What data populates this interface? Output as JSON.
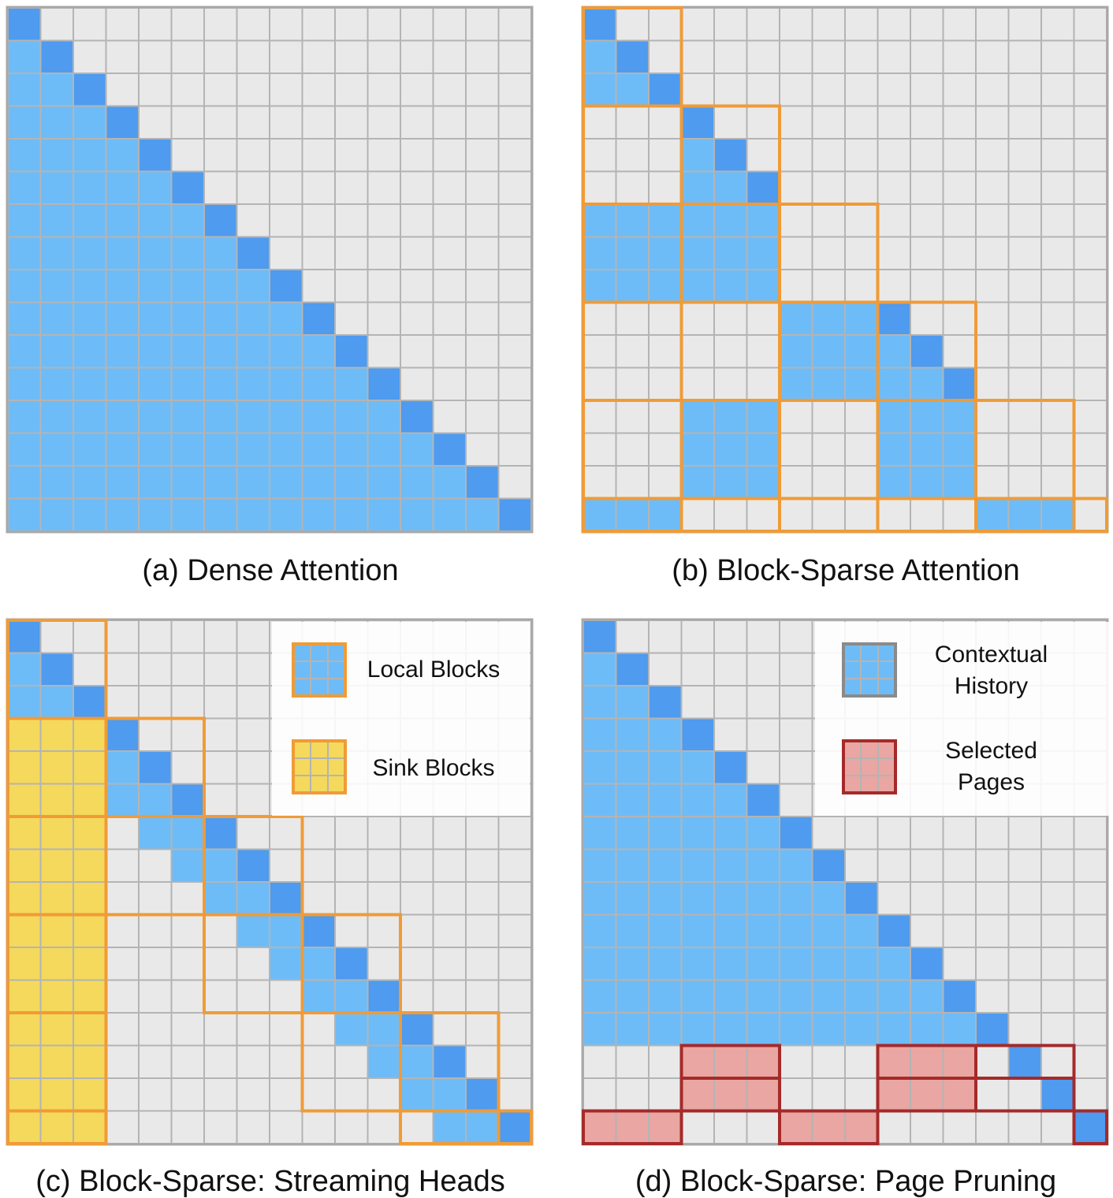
{
  "colors": {
    "empty": "#e9e9e9",
    "grid": "#b4b4b4",
    "border": "#a8a8a8",
    "attended": "#6ebcf7",
    "diagonal": "#4e9bf0",
    "sink": "#f4d95c",
    "selected": "#e9a6a2",
    "orange": "#f09b37",
    "darkred": "#a52a2a"
  },
  "grid_size": 16,
  "panels": [
    {
      "id": "a",
      "caption": "(a) Dense Attention",
      "pattern": "dense"
    },
    {
      "id": "b",
      "caption": "(b) Block-Sparse Attention",
      "pattern": "block-sparse",
      "block_size": 3,
      "blocks": [
        [
          0,
          0
        ],
        [
          1,
          1
        ],
        [
          2,
          0
        ],
        [
          2,
          1
        ],
        [
          3,
          2
        ],
        [
          3,
          3
        ],
        [
          4,
          1
        ],
        [
          4,
          3
        ],
        [
          5,
          0
        ],
        [
          5,
          4
        ]
      ]
    },
    {
      "id": "c",
      "caption": "(c) Block-Sparse: Streaming Heads",
      "pattern": "streaming-heads",
      "block_size": 3,
      "local_window": 3,
      "legend": [
        {
          "label": "Local Blocks",
          "swatch": "local"
        },
        {
          "label": "Sink Blocks",
          "swatch": "sink"
        }
      ]
    },
    {
      "id": "d",
      "caption": "(d) Block-Sparse: Page Pruning",
      "pattern": "page-pruning",
      "history_rows": 13,
      "selected_pages": [
        [
          13,
          3,
          3
        ],
        [
          13,
          9,
          3
        ],
        [
          14,
          3,
          3
        ],
        [
          14,
          9,
          3
        ],
        [
          15,
          0,
          3
        ],
        [
          15,
          6,
          3
        ]
      ],
      "query_outlines": [
        [
          13,
          12,
          3
        ],
        [
          14,
          12,
          3
        ],
        [
          15,
          15,
          1
        ]
      ],
      "legend": [
        {
          "label_lines": [
            "Contextual",
            "History"
          ],
          "swatch": "history"
        },
        {
          "label_lines": [
            "Selected",
            "Pages"
          ],
          "swatch": "selected"
        }
      ]
    }
  ]
}
